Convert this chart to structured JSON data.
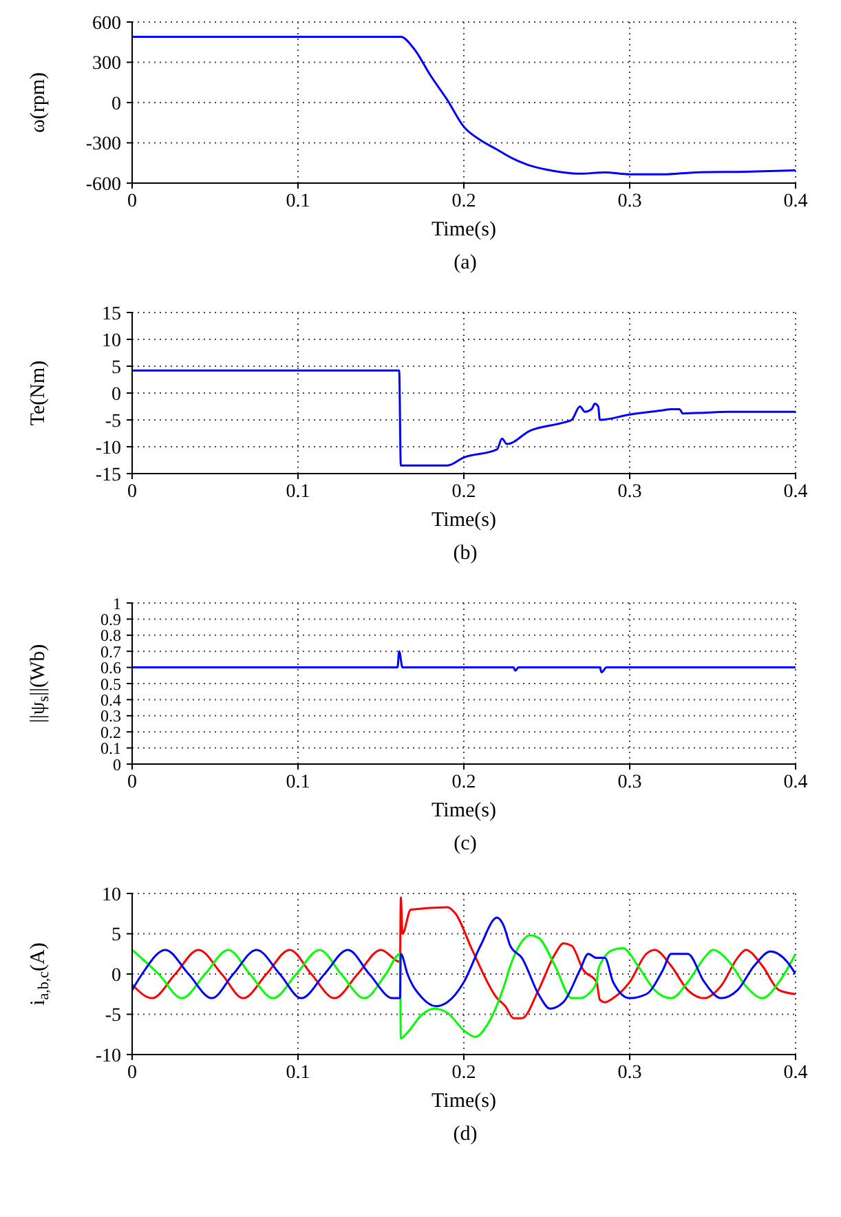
{
  "chart_data": [
    {
      "type": "line",
      "ylabel": "ω(rpm)",
      "xlabel": "Time(s)",
      "annotations": [
        "(a)"
      ],
      "xlim": [
        0,
        0.4
      ],
      "xticks": [
        0,
        0.1,
        0.2,
        0.3,
        0.4
      ],
      "ylim": [
        -600,
        600
      ],
      "yticks": [
        -600,
        -300,
        0,
        300,
        600
      ],
      "grid": true,
      "series": [
        {
          "color": "#0000ff",
          "x": [
            0,
            0.1,
            0.162,
            0.17,
            0.18,
            0.19,
            0.2,
            0.21,
            0.22,
            0.23,
            0.24,
            0.25,
            0.26,
            0.27,
            0.285,
            0.3,
            0.32,
            0.34,
            0.37,
            0.4
          ],
          "values": [
            490,
            490,
            490,
            400,
            200,
            20,
            -180,
            -280,
            -350,
            -420,
            -470,
            -500,
            -520,
            -530,
            -520,
            -535,
            -535,
            -520,
            -515,
            -505
          ]
        }
      ]
    },
    {
      "type": "line",
      "ylabel": "Te(Nm)",
      "xlabel": "Time(s)",
      "annotations": [
        "(b)"
      ],
      "xlim": [
        0,
        0.4
      ],
      "xticks": [
        0,
        0.1,
        0.2,
        0.3,
        0.4
      ],
      "ylim": [
        -15,
        15
      ],
      "yticks": [
        -15,
        -10,
        -5,
        0,
        5,
        10,
        15
      ],
      "grid": true,
      "series": [
        {
          "color": "#0000ff",
          "x": [
            0,
            0.08,
            0.161,
            0.162,
            0.19,
            0.2,
            0.22,
            0.223,
            0.226,
            0.24,
            0.26,
            0.265,
            0.27,
            0.273,
            0.277,
            0.279,
            0.281,
            0.282,
            0.3,
            0.32,
            0.325,
            0.33,
            0.332,
            0.36,
            0.4
          ],
          "values": [
            4.2,
            4.2,
            4.2,
            -13.5,
            -13.5,
            -12,
            -10.5,
            -8.5,
            -9.5,
            -7,
            -5.5,
            -5,
            -2.5,
            -3.5,
            -3,
            -2,
            -2.5,
            -5,
            -4,
            -3.2,
            -3,
            -3,
            -3.8,
            -3.5,
            -3.5
          ]
        }
      ]
    },
    {
      "type": "line",
      "ylabel": "||ψ$_{s}$||(Wb)",
      "xlabel": "Time(s)",
      "annotations": [
        "(c)"
      ],
      "xlim": [
        0,
        0.4
      ],
      "xticks": [
        0,
        0.1,
        0.2,
        0.3,
        0.4
      ],
      "ylim": [
        0,
        1
      ],
      "yticks": [
        0,
        0.1,
        0.2,
        0.3,
        0.4,
        0.5,
        0.6,
        0.7,
        0.8,
        0.9,
        1
      ],
      "grid": true,
      "series": [
        {
          "color": "#0000ff",
          "x": [
            0,
            0.16,
            0.161,
            0.163,
            0.23,
            0.231,
            0.233,
            0.282,
            0.283,
            0.286,
            0.4
          ],
          "values": [
            0.6,
            0.6,
            0.7,
            0.6,
            0.6,
            0.58,
            0.6,
            0.6,
            0.57,
            0.6,
            0.6
          ]
        }
      ]
    },
    {
      "type": "line",
      "ylabel": "i$_{a,b,c}$(A)",
      "xlabel": "Time(s)",
      "annotations": [
        "(d)"
      ],
      "xlim": [
        0,
        0.4
      ],
      "xticks": [
        0,
        0.1,
        0.2,
        0.3,
        0.4
      ],
      "ylim": [
        -10,
        10
      ],
      "yticks": [
        -10,
        -5,
        0,
        5,
        10
      ],
      "grid": true,
      "series": [
        {
          "color": "#ff0000",
          "x": [
            0,
            0.012,
            0.026,
            0.04,
            0.054,
            0.067,
            0.081,
            0.095,
            0.108,
            0.122,
            0.136,
            0.15,
            0.1615,
            0.162,
            0.163,
            0.168,
            0.19,
            0.195,
            0.205,
            0.22,
            0.225,
            0.23,
            0.235,
            0.245,
            0.255,
            0.26,
            0.265,
            0.272,
            0.28,
            0.282,
            0.285,
            0.29,
            0.3,
            0.31,
            0.315,
            0.325,
            0.335,
            0.345,
            0.355,
            0.365,
            0.37,
            0.38,
            0.39,
            0.4
          ],
          "values": [
            -1.3,
            -3,
            0,
            3,
            0,
            -3,
            0,
            3,
            0,
            -3,
            0,
            3,
            1.5,
            9.5,
            5,
            8,
            8.3,
            7.5,
            3,
            -3,
            -4,
            -5.5,
            -5.5,
            -2,
            2.5,
            3.8,
            3.5,
            0.5,
            -1,
            -3.2,
            -3.5,
            -3,
            -1,
            2.5,
            3,
            1,
            -2,
            -3,
            -1.5,
            2,
            3,
            1,
            -2,
            -2.5
          ]
        },
        {
          "color": "#00ff00",
          "x": [
            0,
            0.016,
            0.03,
            0.044,
            0.058,
            0.071,
            0.085,
            0.099,
            0.113,
            0.126,
            0.14,
            0.153,
            0.1615,
            0.162,
            0.165,
            0.175,
            0.182,
            0.19,
            0.2,
            0.207,
            0.215,
            0.225,
            0.228,
            0.232,
            0.24,
            0.245,
            0.255,
            0.265,
            0.27,
            0.275,
            0.28,
            0.281,
            0.283,
            0.29,
            0.296,
            0.305,
            0.315,
            0.325,
            0.335,
            0.345,
            0.35,
            0.36,
            0.37,
            0.38,
            0.39,
            0.4
          ],
          "values": [
            3,
            0,
            -3,
            0,
            3,
            0,
            -3,
            0,
            3,
            0,
            -3,
            0,
            2.5,
            -8,
            -7.5,
            -5,
            -4.3,
            -4.8,
            -7,
            -7.8,
            -6,
            -1,
            1,
            3,
            4.8,
            4.5,
            1,
            -3,
            -3,
            -2.5,
            -1,
            0.5,
            1.5,
            3,
            3.2,
            1,
            -2,
            -3,
            -1,
            2,
            3,
            1.5,
            -1.5,
            -3,
            -1,
            2.5
          ]
        },
        {
          "color": "#0000ff",
          "x": [
            0,
            0.006,
            0.02,
            0.034,
            0.048,
            0.061,
            0.075,
            0.089,
            0.102,
            0.116,
            0.13,
            0.143,
            0.157,
            0.1615,
            0.162,
            0.166,
            0.175,
            0.183,
            0.19,
            0.2,
            0.21,
            0.22,
            0.224,
            0.228,
            0.235,
            0.245,
            0.252,
            0.26,
            0.27,
            0.275,
            0.28,
            0.285,
            0.29,
            0.3,
            0.31,
            0.32,
            0.325,
            0.335,
            0.345,
            0.355,
            0.365,
            0.375,
            0.385,
            0.395,
            0.4
          ],
          "values": [
            -2,
            0,
            3,
            0,
            -3,
            0,
            3,
            0,
            -3,
            0,
            3,
            0,
            -3,
            -3,
            2.5,
            0,
            -3,
            -4,
            -3.5,
            -1,
            3.5,
            7,
            6,
            3.5,
            2,
            -2.5,
            -4.3,
            -3.5,
            0.5,
            2.5,
            2,
            2,
            -1,
            -3,
            -2.5,
            0.5,
            2.5,
            2.5,
            -1,
            -3,
            -2,
            1,
            2.8,
            1.5,
            0
          ]
        }
      ]
    }
  ]
}
